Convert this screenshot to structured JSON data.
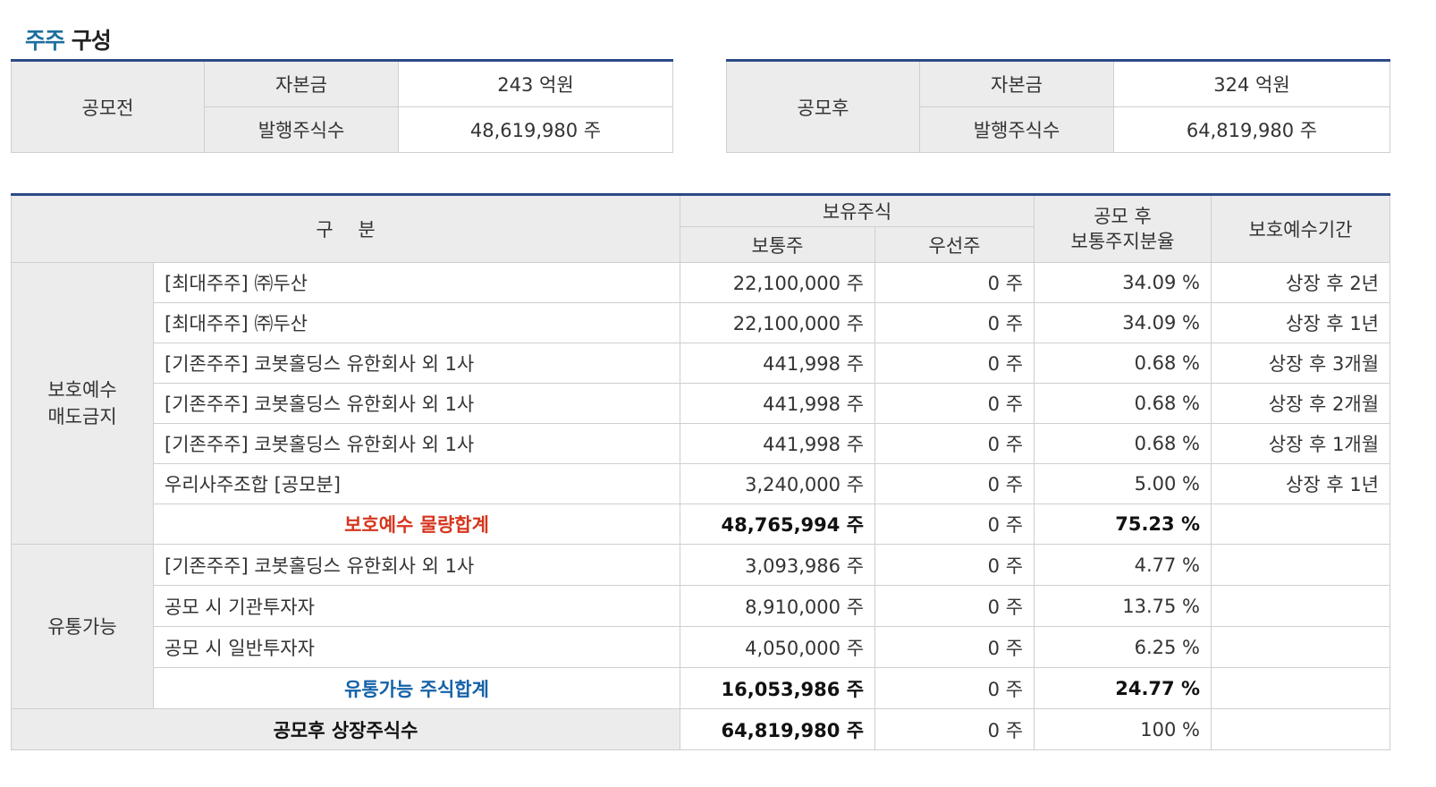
{
  "title": {
    "accent": "주주",
    "rest": " 구성"
  },
  "before": {
    "label": "공모전",
    "capital_label": "자본금",
    "capital": "243 억원",
    "shares_label": "발행주식수",
    "shares": "48,619,980 주"
  },
  "after": {
    "label": "공모후",
    "capital_label": "자본금",
    "capital": "324 억원",
    "shares_label": "발행주식수",
    "shares": "64,819,980 주"
  },
  "header": {
    "category": "구　 분",
    "held": "보유주식",
    "common": "보통주",
    "preferred": "우선주",
    "ratio": "공모 후\n보통주지분율",
    "lockup": "보호예수기간"
  },
  "lock_group": {
    "label": "보호예수\n매도금지",
    "rows": [
      {
        "name": "[최대주주] ㈜두산",
        "common": "22,100,000 주",
        "preferred": "0 주",
        "ratio": "34.09 %",
        "period": "상장 후 2년"
      },
      {
        "name": "[최대주주] ㈜두산",
        "common": "22,100,000 주",
        "preferred": "0 주",
        "ratio": "34.09 %",
        "period": "상장 후 1년"
      },
      {
        "name": "[기존주주] 코봇홀딩스 유한회사 외 1사",
        "common": "441,998 주",
        "preferred": "0 주",
        "ratio": "0.68 %",
        "period": "상장 후 3개월"
      },
      {
        "name": "[기존주주] 코봇홀딩스 유한회사 외 1사",
        "common": "441,998 주",
        "preferred": "0 주",
        "ratio": "0.68 %",
        "period": "상장 후 2개월"
      },
      {
        "name": "[기존주주] 코봇홀딩스 유한회사 외 1사",
        "common": "441,998 주",
        "preferred": "0 주",
        "ratio": "0.68 %",
        "period": "상장 후 1개월"
      },
      {
        "name": "우리사주조합 [공모분]",
        "common": "3,240,000 주",
        "preferred": "0 주",
        "ratio": "5.00 %",
        "period": "상장 후 1년"
      }
    ],
    "subtotal": {
      "name": "보호예수 물량합계",
      "common": "48,765,994 주",
      "preferred": "0 주",
      "ratio": "75.23 %"
    }
  },
  "free_group": {
    "label": "유통가능",
    "rows": [
      {
        "name": "[기존주주] 코봇홀딩스 유한회사 외 1사",
        "common": "3,093,986 주",
        "preferred": "0 주",
        "ratio": "4.77 %"
      },
      {
        "name": "공모 시 기관투자자",
        "common": "8,910,000 주",
        "preferred": "0 주",
        "ratio": "13.75 %"
      },
      {
        "name": "공모 시 일반투자자",
        "common": "4,050,000 주",
        "preferred": "0 주",
        "ratio": "6.25 %"
      }
    ],
    "subtotal": {
      "name": "유통가능 주식합계",
      "common": "16,053,986 주",
      "preferred": "0 주",
      "ratio": "24.77 %"
    }
  },
  "total": {
    "name": "공모후 상장주식수",
    "common": "64,819,980 주",
    "preferred": "0 주",
    "ratio": "100 %"
  }
}
